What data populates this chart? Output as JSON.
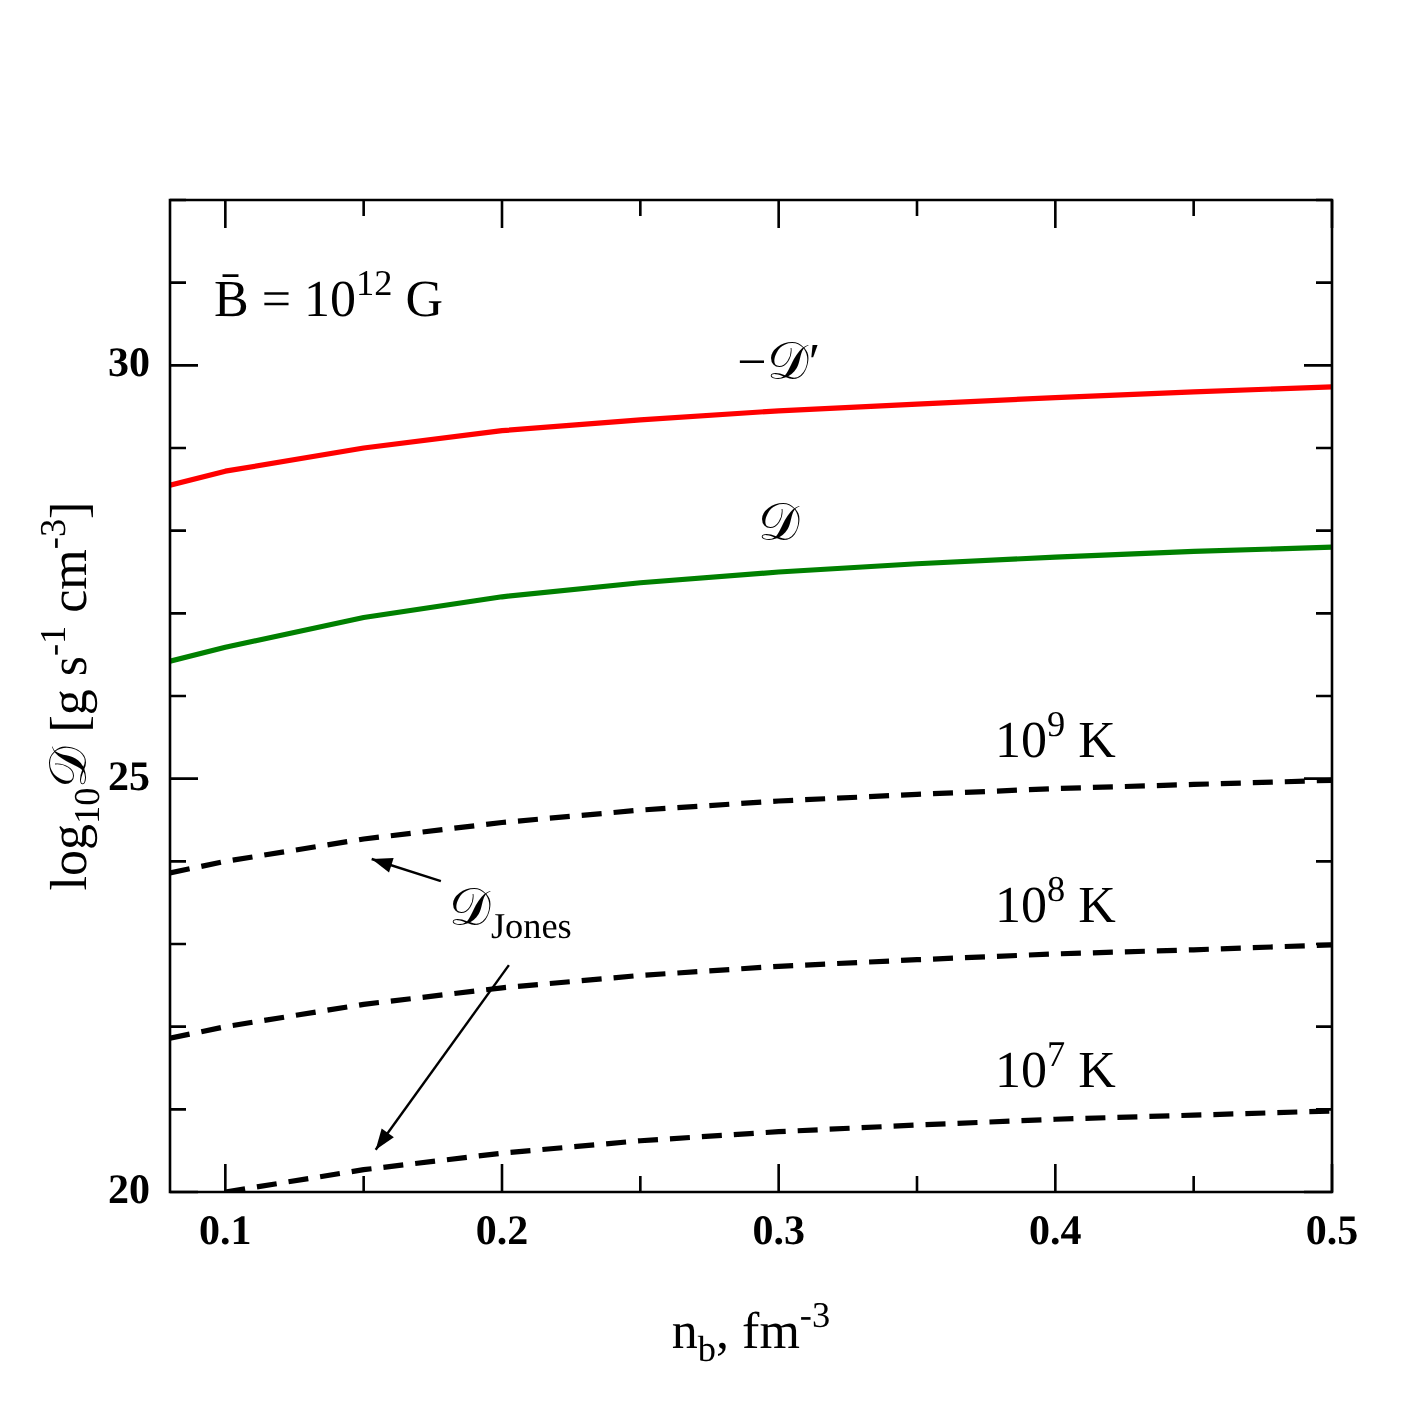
{
  "chart_data": {
    "type": "line",
    "xlabel": "n$_{b}$, fm$^{-3}$",
    "ylabel": "log$_{10}$𝒟 [g s$^{-1}$ cm$^{-3}$]",
    "x": [
      0.08,
      0.1,
      0.15,
      0.2,
      0.25,
      0.3,
      0.35,
      0.4,
      0.45,
      0.5
    ],
    "series": [
      {
        "name": "−𝒟′",
        "color": "#ff0000",
        "line_style": "solid",
        "values": [
          28.55,
          28.72,
          29.0,
          29.21,
          29.34,
          29.45,
          29.53,
          29.61,
          29.68,
          29.74
        ]
      },
      {
        "name": "𝒟",
        "color": "#008000",
        "line_style": "solid",
        "values": [
          26.42,
          26.59,
          26.95,
          27.2,
          27.37,
          27.5,
          27.6,
          27.68,
          27.75,
          27.8
        ]
      },
      {
        "name": "10$^{9}$ K",
        "color": "#000000",
        "line_style": "dashed",
        "values": [
          23.86,
          24.0,
          24.27,
          24.47,
          24.62,
          24.73,
          24.81,
          24.88,
          24.93,
          24.98
        ]
      },
      {
        "name": "10$^{8}$ K",
        "color": "#000000",
        "line_style": "dashed",
        "values": [
          21.86,
          22.0,
          22.27,
          22.47,
          22.62,
          22.73,
          22.81,
          22.88,
          22.93,
          22.99
        ]
      },
      {
        "name": "10$^{7}$ K",
        "color": "#000000",
        "line_style": "dashed",
        "x": [
          0.1,
          0.15,
          0.2,
          0.25,
          0.3,
          0.35,
          0.4,
          0.45,
          0.5
        ],
        "values": [
          20.0,
          20.27,
          20.47,
          20.62,
          20.73,
          20.81,
          20.88,
          20.93,
          20.98
        ]
      }
    ],
    "annotations": [
      "B̄ = 10$^{12}$ G",
      "𝒟$_{Jones}$"
    ],
    "xlim": [
      0.08,
      0.5
    ],
    "xticks": [
      0.1,
      {
        "value": 0.15,
        "label": null
      },
      0.2,
      {
        "value": 0.25,
        "label": null
      },
      0.3,
      {
        "value": 0.35,
        "label": null
      },
      0.4,
      {
        "value": 0.45,
        "label": null
      },
      0.5
    ],
    "ylim": [
      20,
      32
    ],
    "yticks": [
      20,
      {
        "value": 21,
        "label": null
      },
      {
        "value": 22,
        "label": null
      },
      {
        "value": 23,
        "label": null
      },
      {
        "value": 24,
        "label": null
      },
      25,
      {
        "value": 26,
        "label": null
      },
      {
        "value": 27,
        "label": null
      },
      {
        "value": 28,
        "label": null
      },
      {
        "value": 29,
        "label": null
      },
      30,
      {
        "value": 31,
        "label": null
      },
      {
        "value": 32,
        "label": null
      }
    ],
    "grid": false,
    "legend": false,
    "marker": "none"
  }
}
